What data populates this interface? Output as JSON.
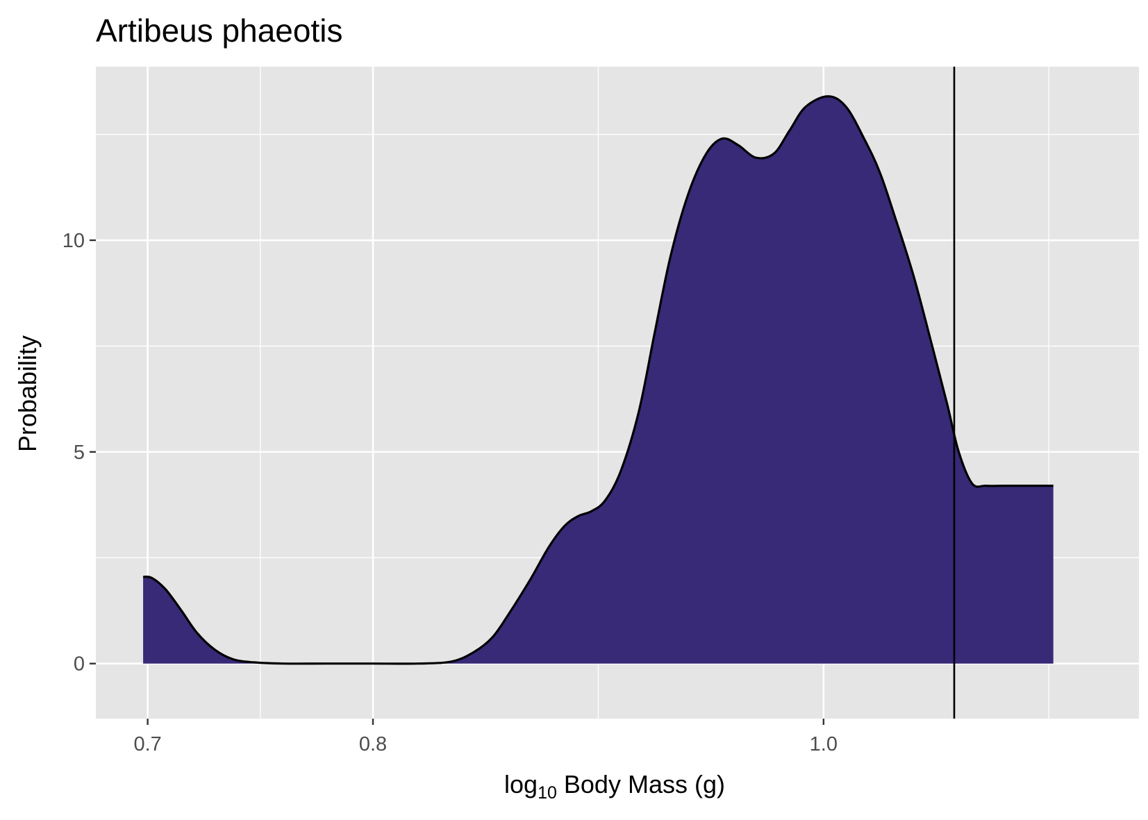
{
  "chart_data": {
    "type": "area",
    "title": "Artibeus phaeotis",
    "xlabel": {
      "prefix": "log",
      "subscript": "10",
      "rest": " Body Mass (g)"
    },
    "ylabel": "Probability",
    "xlim": [
      0.677,
      1.14
    ],
    "ylim": [
      -1.3,
      14.1
    ],
    "x_ticks": [
      {
        "value": 0.7,
        "label": "0.7"
      },
      {
        "value": 0.8,
        "label": "0.8"
      },
      {
        "value": 1.0,
        "label": "1.0"
      }
    ],
    "x_minor": [
      0.75,
      0.9,
      1.1
    ],
    "y_ticks": [
      {
        "value": 0,
        "label": "0"
      },
      {
        "value": 5,
        "label": "5"
      },
      {
        "value": 10,
        "label": "10"
      }
    ],
    "y_minor": [
      2.5,
      7.5,
      12.5
    ],
    "grid": true,
    "fill_color": "#382a77",
    "line_color": "#000000",
    "panel_color": "#e5e5e5",
    "grid_color": "#ffffff",
    "reference_line_x": 1.058,
    "x": [
      0.698,
      0.702,
      0.708,
      0.715,
      0.722,
      0.73,
      0.738,
      0.747,
      0.76,
      0.78,
      0.8,
      0.82,
      0.835,
      0.845,
      0.853,
      0.86,
      0.87,
      0.878,
      0.885,
      0.891,
      0.897,
      0.903,
      0.91,
      0.918,
      0.925,
      0.932,
      0.94,
      0.948,
      0.955,
      0.962,
      0.97,
      0.978,
      0.985,
      0.992,
      1.002,
      1.01,
      1.018,
      1.025,
      1.032,
      1.04,
      1.048,
      1.055,
      1.06,
      1.066,
      1.072,
      1.08,
      1.088,
      1.096,
      1.102
    ],
    "y": [
      2.05,
      2.02,
      1.75,
      1.25,
      0.72,
      0.32,
      0.1,
      0.03,
      0.0,
      0.0,
      0.0,
      0.0,
      0.05,
      0.28,
      0.62,
      1.15,
      2.0,
      2.75,
      3.25,
      3.48,
      3.6,
      3.85,
      4.55,
      5.95,
      7.8,
      9.6,
      11.1,
      12.05,
      12.4,
      12.25,
      11.95,
      12.05,
      12.6,
      13.15,
      13.4,
      13.15,
      12.4,
      11.6,
      10.5,
      9.15,
      7.55,
      6.1,
      5.0,
      4.25,
      4.2,
      4.2,
      4.2,
      4.2,
      4.2
    ]
  }
}
